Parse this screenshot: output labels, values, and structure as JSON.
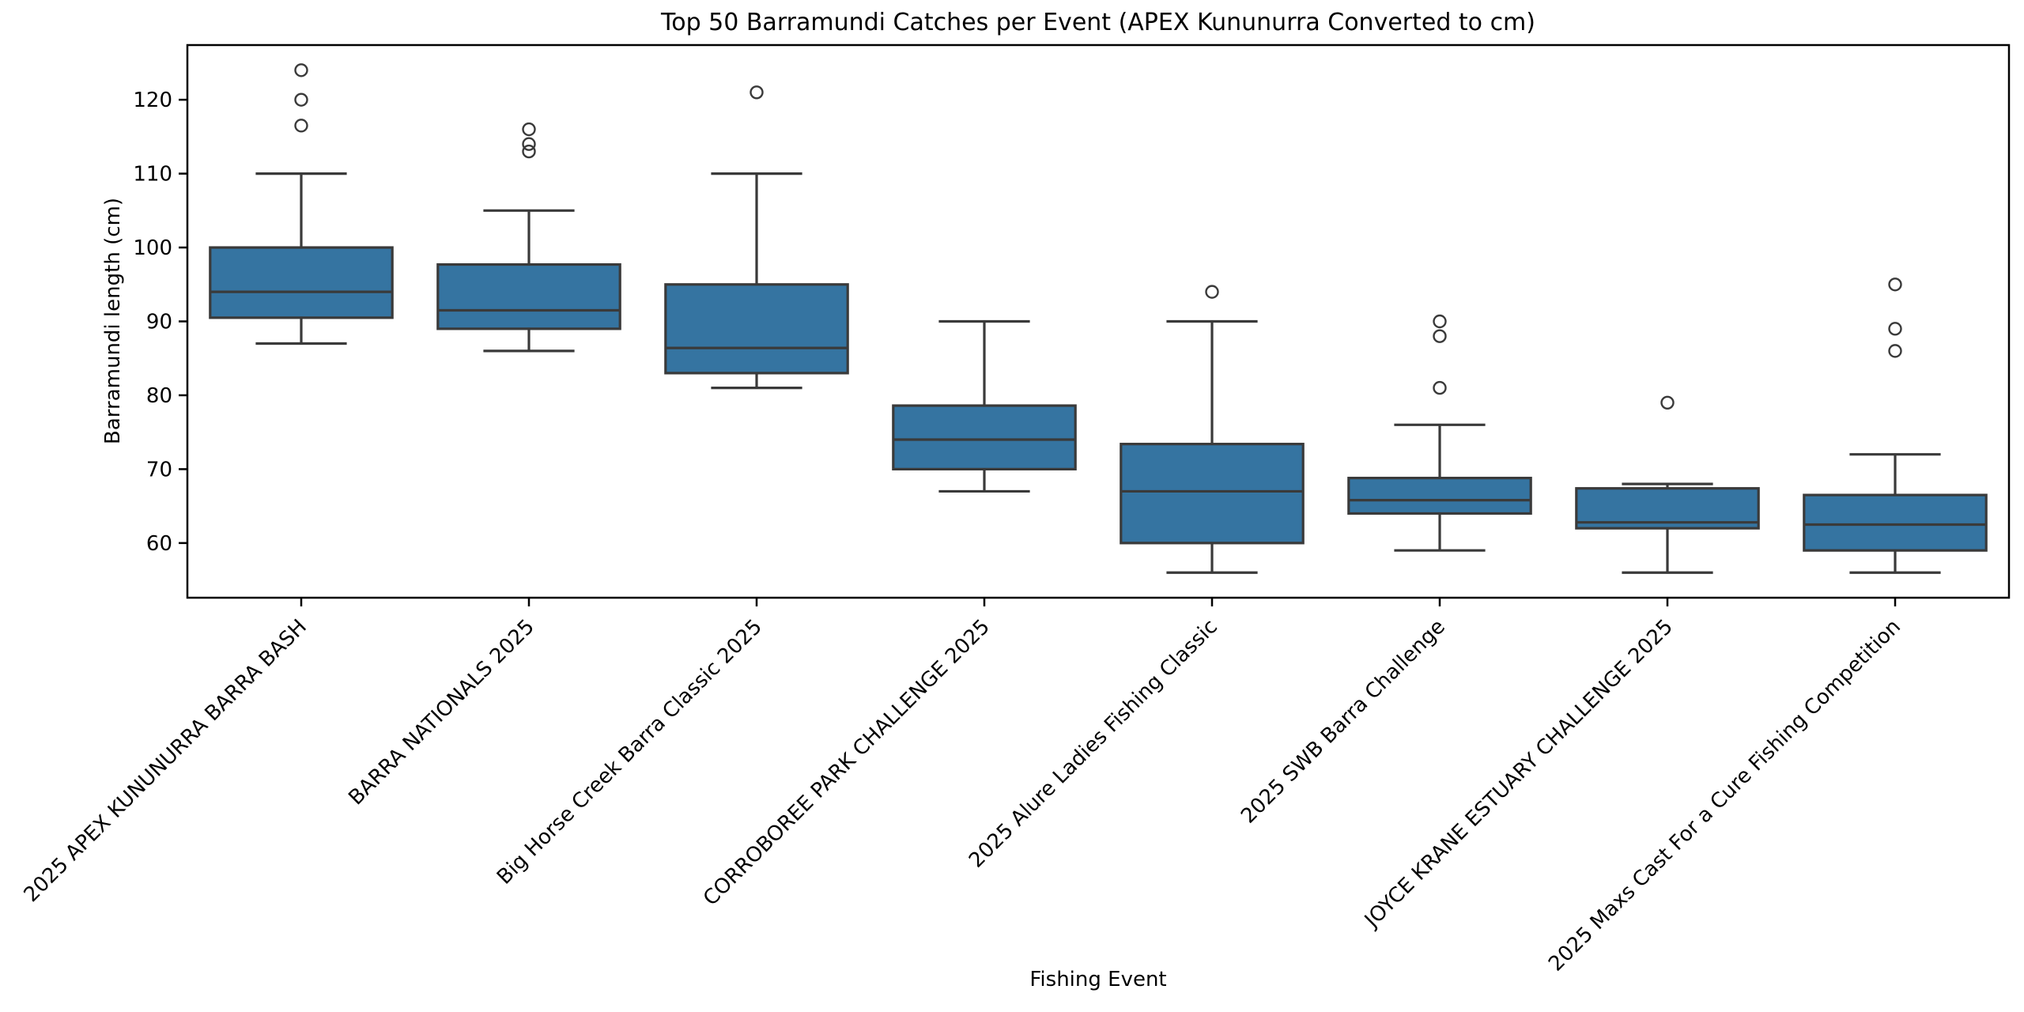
{
  "chart_data": {
    "type": "boxplot",
    "title": "Top 50 Barramundi Catches per Event (APEX Kununurra Converted to cm)",
    "xlabel": "Fishing Event",
    "ylabel": "Barramundi length (cm)",
    "ylim": [
      52.6,
      127.4
    ],
    "yticks": [
      60,
      70,
      80,
      90,
      100,
      110,
      120
    ],
    "grid": false,
    "legend": "none",
    "x_tick_label_rotation_deg": 45,
    "box_fill_color": "#3574A1",
    "box_line_color": "#3a3a3a",
    "axis_color": "#000000",
    "outlier_marker": "circle",
    "boxes": [
      {
        "category": "2025 APEX KUNUNURRA BARRA BASH",
        "whisker_low": 87,
        "q1": 90.5,
        "median": 94,
        "q3": 100,
        "whisker_high": 110,
        "outliers": [
          116.5,
          120,
          124
        ]
      },
      {
        "category": "BARRA NATIONALS 2025",
        "whisker_low": 86,
        "q1": 89,
        "median": 91.5,
        "q3": 97.7,
        "whisker_high": 105,
        "outliers": [
          113,
          114,
          116
        ]
      },
      {
        "category": "Big Horse Creek Barra Classic 2025",
        "whisker_low": 81,
        "q1": 83,
        "median": 86.4,
        "q3": 95,
        "whisker_high": 110,
        "outliers": [
          121
        ]
      },
      {
        "category": "CORROBOREE PARK CHALLENGE 2025",
        "whisker_low": 67,
        "q1": 70,
        "median": 74,
        "q3": 78.6,
        "whisker_high": 90,
        "outliers": []
      },
      {
        "category": "2025 Alure Ladies Fishing Classic",
        "whisker_low": 56,
        "q1": 60,
        "median": 67,
        "q3": 73.4,
        "whisker_high": 90,
        "outliers": [
          94
        ]
      },
      {
        "category": "2025 SWB Barra Challenge",
        "whisker_low": 59,
        "q1": 64,
        "median": 65.8,
        "q3": 68.8,
        "whisker_high": 76,
        "outliers": [
          81,
          88,
          90
        ]
      },
      {
        "category": "JOYCE KRANE ESTUARY CHALLENGE 2025",
        "whisker_low": 56,
        "q1": 62,
        "median": 62.8,
        "q3": 67.4,
        "whisker_high": 68,
        "outliers": [
          79
        ]
      },
      {
        "category": "2025 Maxs Cast For a Cure Fishing Competition",
        "whisker_low": 56,
        "q1": 59,
        "median": 62.5,
        "q3": 66.5,
        "whisker_high": 72,
        "outliers": [
          86,
          89,
          95
        ]
      }
    ]
  }
}
